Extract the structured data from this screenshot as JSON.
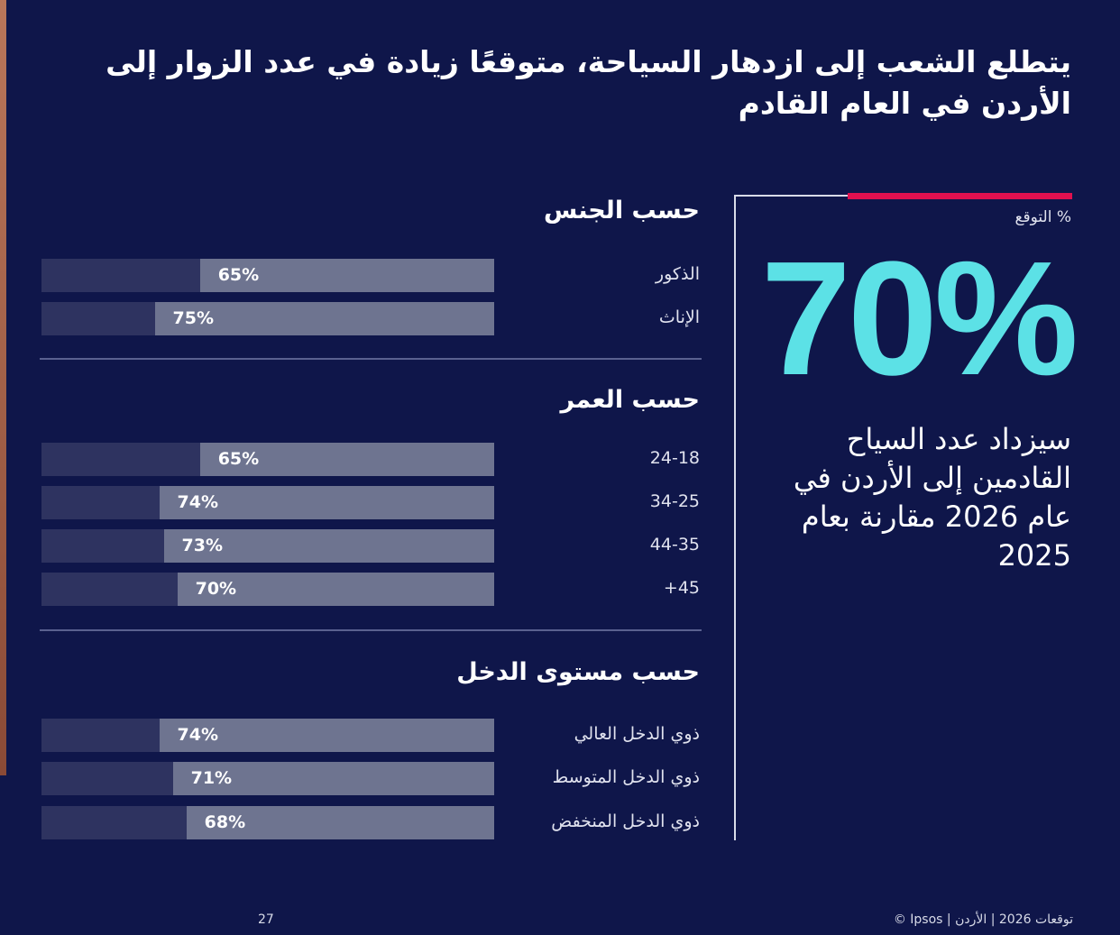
{
  "title": "يتطلع الشعب إلى ازدهار السياحة، متوقعًا زيادة في عدد الزوار إلى الأردن في العام القادم",
  "kpi": {
    "label": "% التوقع",
    "value": "70%",
    "description": "سيزداد عدد السياح القادمين إلى الأردن في عام 2026 مقارنة بعام 2025",
    "accent": "#5ce1e6",
    "line_color": "#e0104f"
  },
  "footer": {
    "page": "27",
    "credit": "© Ipsos | توقعات 2026 | الأردن"
  },
  "chart_data": {
    "type": "bar",
    "orientation": "horizontal",
    "xlim": [
      0,
      100
    ],
    "colors": {
      "value": "#6e7490",
      "remainder": "#2e3360"
    },
    "groups": [
      {
        "title": "حسب الجنس",
        "categories": [
          "الذكور",
          "الإناث"
        ],
        "values": [
          65,
          75
        ]
      },
      {
        "title": "حسب العمر",
        "categories": [
          "24-18",
          "34-25",
          "44-35",
          "45+"
        ],
        "values": [
          65,
          74,
          73,
          70
        ]
      },
      {
        "title": "حسب مستوى الدخل",
        "categories": [
          "ذوي الدخل العالي",
          "ذوي الدخل المتوسط",
          "ذوي الدخل المنخفض"
        ],
        "values": [
          74,
          71,
          68
        ]
      }
    ]
  }
}
